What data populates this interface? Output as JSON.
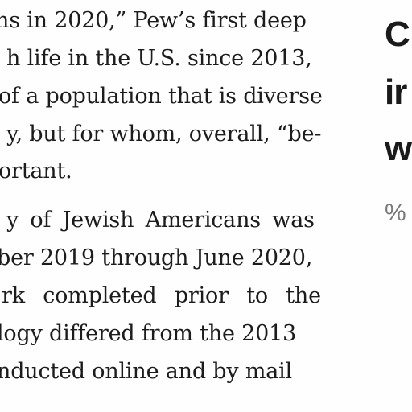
{
  "article": {
    "lines": [
      "ns in 2020,” Pew’s first deep",
      "h life in the U.S. since 2013,",
      "of a population that is diverse",
      "y, but for whom, overall, “be-",
      "ortant.",
      "y of Jewish Americans was",
      "ber 2019 through June 2020,",
      "rk completed prior to the",
      "logy differed from the 2013",
      "nducted online and by mail"
    ]
  },
  "sidebar": {
    "heading_lines": [
      "C",
      "ir",
      "w"
    ],
    "subhead": "%"
  }
}
